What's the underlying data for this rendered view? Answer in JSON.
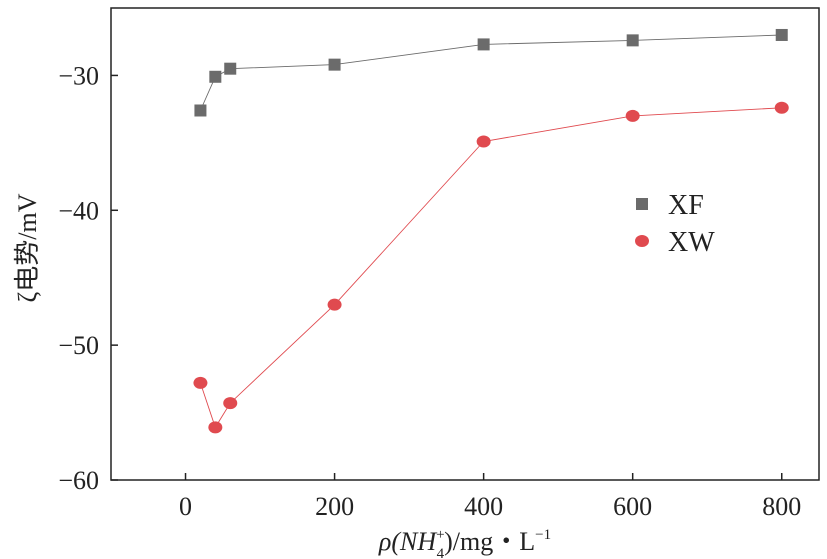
{
  "chart_data": {
    "type": "line",
    "title": "",
    "xlabel": {
      "base": "ρ(NH",
      "sup": "+",
      "sub": "4",
      "tail": ")/mg・L",
      "tail_sup": "−1"
    },
    "ylabel": "ζ电势/mV",
    "xlim": [
      -100,
      850
    ],
    "ylim": [
      -60,
      -25
    ],
    "xticks": [
      0,
      200,
      400,
      600,
      800
    ],
    "xtick_labels": [
      "0",
      "200",
      "400",
      "600",
      "800"
    ],
    "yticks": [
      -60,
      -50,
      -40,
      -30
    ],
    "ytick_labels": [
      "−60",
      "−50",
      "−40",
      "−30"
    ],
    "grid": false,
    "legend_position": "right-middle",
    "series": [
      {
        "name": "XF",
        "marker": "square",
        "color": "#6b6b6b",
        "x": [
          20,
          40,
          60,
          200,
          400,
          600,
          800
        ],
        "y": [
          -32.6,
          -30.1,
          -29.5,
          -29.2,
          -27.7,
          -27.4,
          -27.0
        ]
      },
      {
        "name": "XW",
        "marker": "circle",
        "color": "#e04a4f",
        "x": [
          20,
          40,
          60,
          200,
          400,
          600,
          800
        ],
        "y": [
          -52.8,
          -56.1,
          -54.3,
          -47.0,
          -34.9,
          -33.0,
          -32.4
        ]
      }
    ]
  }
}
